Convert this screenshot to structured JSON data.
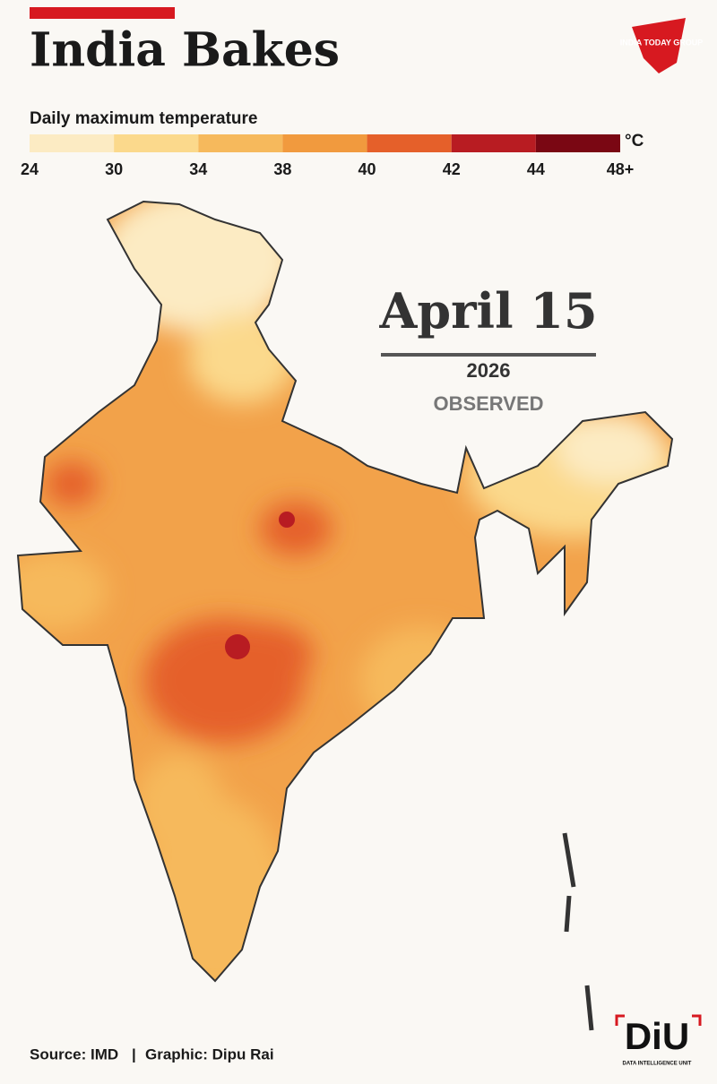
{
  "header": {
    "title": "India Bakes",
    "brand": "INDIA TODAY GROUP"
  },
  "legend": {
    "title": "Daily maximum temperature",
    "unit": "°C",
    "ticks": [
      "24",
      "30",
      "34",
      "38",
      "40",
      "42",
      "44",
      "48+"
    ],
    "colors": [
      "#fcebc3",
      "#fbd98c",
      "#f6b95c",
      "#f19a3e",
      "#e5602a",
      "#b81c22",
      "#7a0713"
    ]
  },
  "date": {
    "day": "April 15",
    "year": "2026",
    "status": "OBSERVED"
  },
  "footer": {
    "source": "Source: IMD",
    "separator": "|",
    "credit": "Graphic: Dipu Rai",
    "unit_logo": "DiU",
    "unit_name": "DATA INTELLIGENCE UNIT"
  }
}
